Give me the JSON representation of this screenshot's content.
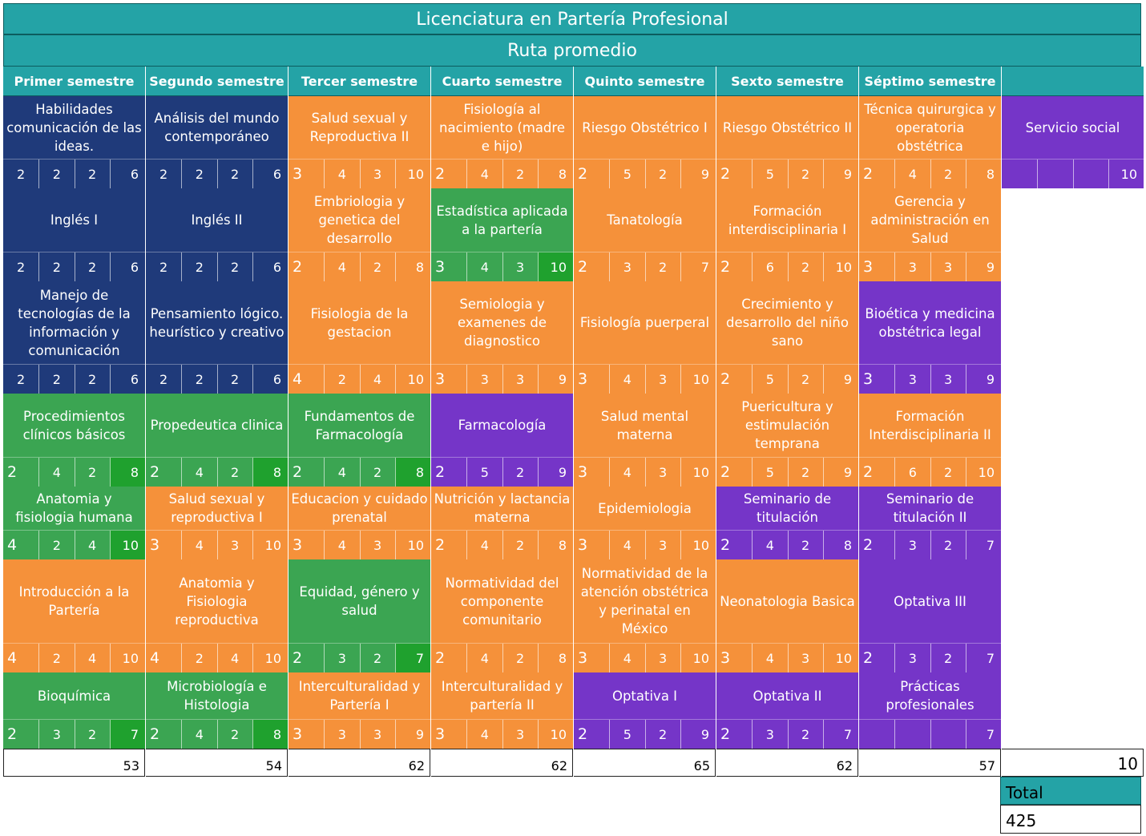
{
  "title": "Licenciatura en Partería Profesional",
  "subtitle": "Ruta promedio",
  "semesters": [
    "Primer semestre",
    "Segundo semestre",
    "Tercer semestre",
    "Cuarto semestre",
    "Quinto semestre",
    "Sexto semestre",
    "Séptimo semestre",
    ""
  ],
  "colors": {
    "navy": "#1f3a7a",
    "orange": "#f5913a",
    "green": "#3ba552",
    "purple": "#7535c8",
    "teal": "#24a3a6",
    "bright_green": "#1fa12e"
  },
  "rows": [
    [
      {
        "name": "Habilidades comunicación de las ideas.",
        "color": "navy",
        "credits": [
          "2",
          "2",
          "2",
          "6"
        ]
      },
      {
        "name": "Análisis del mundo contemporáneo",
        "color": "navy",
        "credits": [
          "2",
          "2",
          "2",
          "6"
        ]
      },
      {
        "name": "Salud sexual y Reproductiva II",
        "color": "orange",
        "credits": [
          "3",
          "4",
          "3",
          "10"
        ]
      },
      {
        "name": "Fisiología al nacimiento (madre e hijo)",
        "color": "orange",
        "credits": [
          "2",
          "4",
          "2",
          "8"
        ]
      },
      {
        "name": "Riesgo Obstétrico I",
        "color": "orange",
        "credits": [
          "2",
          "5",
          "2",
          "9"
        ]
      },
      {
        "name": "Riesgo Obstétrico II",
        "color": "orange",
        "credits": [
          "2",
          "5",
          "2",
          "9"
        ]
      },
      {
        "name": "Técnica quirurgica y operatoria obstétrica",
        "color": "orange",
        "credits": [
          "2",
          "4",
          "2",
          "8"
        ]
      },
      {
        "name": "Servicio social",
        "color": "purple",
        "credits": [
          "",
          "",
          "",
          "10"
        ]
      }
    ],
    [
      {
        "name": "Inglés I",
        "color": "navy",
        "credits": [
          "2",
          "2",
          "2",
          "6"
        ]
      },
      {
        "name": "Inglés II",
        "color": "navy",
        "credits": [
          "2",
          "2",
          "2",
          "6"
        ]
      },
      {
        "name": "Embriologia y genetica del desarrollo",
        "color": "orange",
        "credits": [
          "2",
          "4",
          "2",
          "8"
        ]
      },
      {
        "name": "Estadística aplicada a la partería",
        "color": "green",
        "credits": [
          "3",
          "4",
          "3",
          "10"
        ]
      },
      {
        "name": "Tanatología",
        "color": "orange",
        "credits": [
          "2",
          "3",
          "2",
          "7"
        ]
      },
      {
        "name": "Formación interdisciplinaria I",
        "color": "orange",
        "credits": [
          "2",
          "6",
          "2",
          "10"
        ]
      },
      {
        "name": "Gerencia y administración en Salud",
        "color": "orange",
        "credits": [
          "3",
          "3",
          "3",
          "9"
        ]
      }
    ],
    [
      {
        "name": "Manejo de tecnologías de la información y comunicación",
        "color": "navy",
        "credits": [
          "2",
          "2",
          "2",
          "6"
        ]
      },
      {
        "name": "Pensamiento lógico. heurístico y creativo",
        "color": "navy",
        "credits": [
          "2",
          "2",
          "2",
          "6"
        ]
      },
      {
        "name": "Fisiologia de la gestacion",
        "color": "orange",
        "credits": [
          "4",
          "2",
          "4",
          "10"
        ]
      },
      {
        "name": "Semiologia y examenes de diagnostico",
        "color": "orange",
        "credits": [
          "3",
          "3",
          "3",
          "9"
        ]
      },
      {
        "name": "Fisiología puerperal",
        "color": "orange",
        "credits": [
          "3",
          "4",
          "3",
          "10"
        ]
      },
      {
        "name": "Crecimiento y desarrollo del niño sano",
        "color": "orange",
        "credits": [
          "2",
          "5",
          "2",
          "9"
        ]
      },
      {
        "name": "Bioética y medicina obstétrica legal",
        "color": "purple",
        "credits": [
          "3",
          "3",
          "3",
          "9"
        ]
      }
    ],
    [
      {
        "name": "Procedimientos clínicos básicos",
        "color": "green",
        "credits": [
          "2",
          "4",
          "2",
          "8"
        ]
      },
      {
        "name": "Propedeutica clinica",
        "color": "green",
        "credits": [
          "2",
          "4",
          "2",
          "8"
        ]
      },
      {
        "name": "Fundamentos de Farmacología",
        "color": "green",
        "credits": [
          "2",
          "4",
          "2",
          "8"
        ]
      },
      {
        "name": "Farmacología",
        "color": "purple",
        "credits": [
          "2",
          "5",
          "2",
          "9"
        ]
      },
      {
        "name": "Salud mental materna",
        "color": "orange",
        "credits": [
          "3",
          "4",
          "3",
          "10"
        ]
      },
      {
        "name": "Puericultura y estimulación temprana",
        "color": "orange",
        "credits": [
          "2",
          "5",
          "2",
          "9"
        ]
      },
      {
        "name": "Formación Interdisciplinaria II",
        "color": "orange",
        "credits": [
          "2",
          "6",
          "2",
          "10"
        ]
      }
    ],
    [
      {
        "name": "Anatomia y fisiologia humana",
        "color": "green",
        "credits": [
          "4",
          "2",
          "4",
          "10"
        ]
      },
      {
        "name": "Salud sexual y reproductiva I",
        "color": "orange",
        "credits": [
          "3",
          "4",
          "3",
          "10"
        ]
      },
      {
        "name": "Educacion y cuidado prenatal",
        "color": "orange",
        "credits": [
          "3",
          "4",
          "3",
          "10"
        ]
      },
      {
        "name": "Nutrición y lactancia materna",
        "color": "orange",
        "credits": [
          "2",
          "4",
          "2",
          "8"
        ]
      },
      {
        "name": "Epidemiologia",
        "color": "orange",
        "credits": [
          "3",
          "4",
          "3",
          "10"
        ]
      },
      {
        "name": "Seminario de titulación",
        "color": "purple",
        "credits": [
          "2",
          "4",
          "2",
          "8"
        ]
      },
      {
        "name": "Seminario de titulación II",
        "color": "purple",
        "credits": [
          "2",
          "3",
          "2",
          "7"
        ]
      }
    ],
    [
      {
        "name": "Introducción a la Partería",
        "color": "orange",
        "credits": [
          "4",
          "2",
          "4",
          "10"
        ]
      },
      {
        "name": "Anatomia y Fisiologia reproductiva",
        "color": "orange",
        "credits": [
          "4",
          "2",
          "4",
          "10"
        ]
      },
      {
        "name": "Equidad, género y salud",
        "color": "green",
        "credits": [
          "2",
          "3",
          "2",
          "7"
        ]
      },
      {
        "name": "Normatividad del componente comunitario",
        "color": "orange",
        "credits": [
          "2",
          "4",
          "2",
          "8"
        ]
      },
      {
        "name": "Normatividad de la atención obstétrica y perinatal en México",
        "color": "orange",
        "credits": [
          "3",
          "4",
          "3",
          "10"
        ]
      },
      {
        "name": "Neonatologia Basica",
        "color": "orange",
        "credits": [
          "3",
          "4",
          "3",
          "10"
        ]
      },
      {
        "name": "Optativa III",
        "color": "purple",
        "credits": [
          "2",
          "3",
          "2",
          "7"
        ]
      }
    ],
    [
      {
        "name": "Bioquímica",
        "color": "green",
        "credits": [
          "2",
          "3",
          "2",
          "7"
        ]
      },
      {
        "name": "Microbiología e Histologia",
        "color": "green",
        "credits": [
          "2",
          "4",
          "2",
          "8"
        ]
      },
      {
        "name": "Interculturalidad y Partería I",
        "color": "orange",
        "credits": [
          "3",
          "3",
          "3",
          "9"
        ]
      },
      {
        "name": "Interculturalidad y partería II",
        "color": "orange",
        "credits": [
          "3",
          "4",
          "3",
          "10"
        ]
      },
      {
        "name": "Optativa I",
        "color": "purple",
        "credits": [
          "2",
          "5",
          "2",
          "9"
        ]
      },
      {
        "name": "Optativa II",
        "color": "purple",
        "credits": [
          "2",
          "3",
          "2",
          "7"
        ]
      },
      {
        "name": "Prácticas profesionales",
        "color": "purple",
        "credits": [
          "",
          "",
          "",
          "7"
        ]
      }
    ]
  ],
  "semester_totals": [
    "53",
    "54",
    "62",
    "62",
    "65",
    "62",
    "57",
    "10"
  ],
  "total_label": "Total",
  "total_value": "425"
}
